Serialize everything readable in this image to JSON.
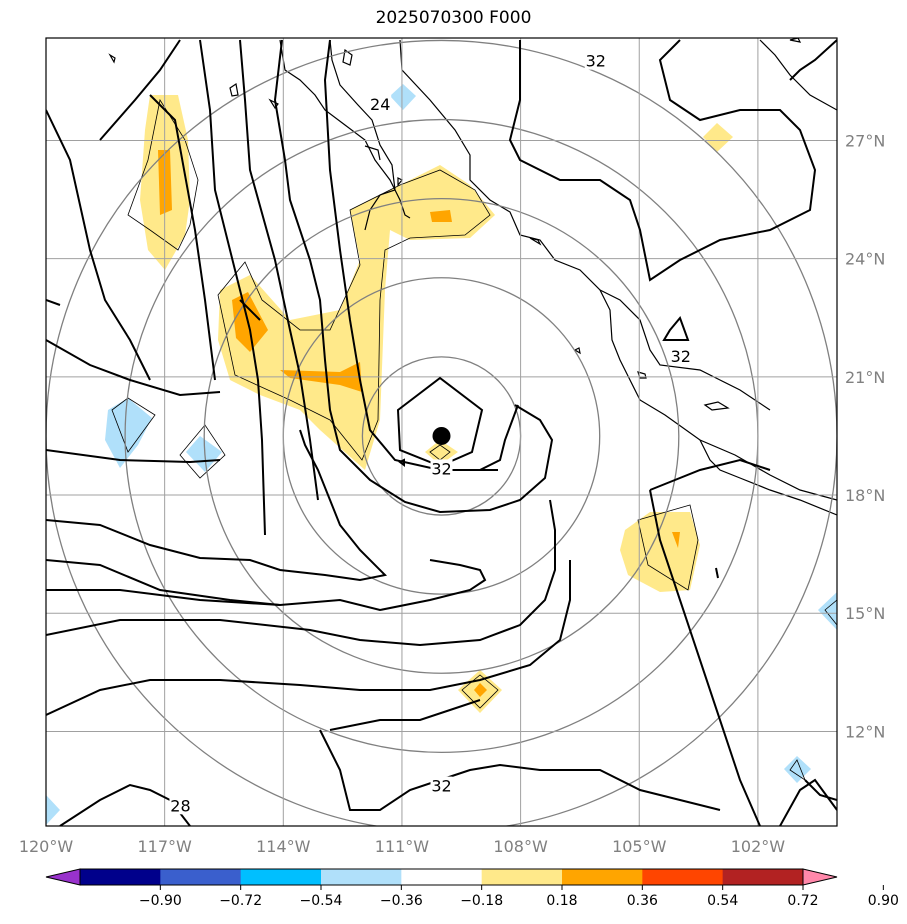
{
  "title": "2025070300 F000",
  "map": {
    "lon_range": [
      -120,
      -100
    ],
    "lat_range": [
      9.6,
      29.6
    ],
    "lon_ticks": [
      {
        "value": -120,
        "label": "120°W"
      },
      {
        "value": -117,
        "label": "117°W"
      },
      {
        "value": -114,
        "label": "114°W"
      },
      {
        "value": -111,
        "label": "111°W"
      },
      {
        "value": -108,
        "label": "108°W"
      },
      {
        "value": -105,
        "label": "105°W"
      },
      {
        "value": -102,
        "label": "102°W"
      }
    ],
    "lat_ticks": [
      {
        "value": 12,
        "label": "12°N"
      },
      {
        "value": 15,
        "label": "15°N"
      },
      {
        "value": 18,
        "label": "18°N"
      },
      {
        "value": 21,
        "label": "21°N"
      },
      {
        "value": 24,
        "label": "24°N"
      },
      {
        "value": 27,
        "label": "27°N"
      }
    ],
    "grid": true,
    "storm_center": {
      "lon": -110.0,
      "lat": 19.5
    },
    "range_rings_deg": [
      2,
      4,
      6,
      8,
      10
    ],
    "contour_labels": [
      {
        "text": "32",
        "lon": -106.1,
        "lat": 29.0
      },
      {
        "text": "24",
        "lon": -111.55,
        "lat": 27.9
      },
      {
        "text": "32",
        "lon": -103.95,
        "lat": 21.5
      },
      {
        "text": "32",
        "lon": -110.0,
        "lat": 18.65
      },
      {
        "text": "32",
        "lon": -110.0,
        "lat": 10.6
      },
      {
        "text": "28",
        "lon": -116.6,
        "lat": 10.1
      }
    ]
  },
  "colorbar": {
    "ticks": [
      "−0.90",
      "−0.72",
      "−0.54",
      "−0.36",
      "−0.18",
      "0.18",
      "0.36",
      "0.54",
      "0.72",
      "0.90"
    ],
    "colors": [
      "#9932cc",
      "#00008b",
      "#3a5fcd",
      "#00bfff",
      "#b0e0fa",
      "#ffffff",
      "#ffe98a",
      "#ffa500",
      "#ff4500",
      "#b22222",
      "#ff88aa"
    ]
  }
}
